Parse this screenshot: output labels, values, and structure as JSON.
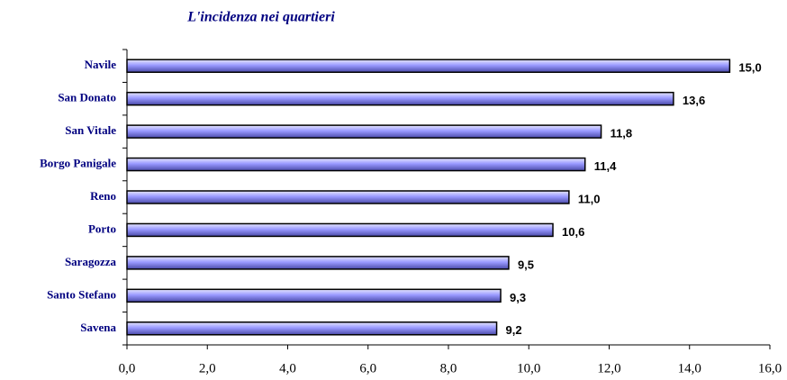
{
  "chart_data": {
    "type": "bar",
    "orientation": "horizontal",
    "title": "L'incidenza nei quartieri",
    "categories": [
      "Navile",
      "San Donato",
      "San Vitale",
      "Borgo Panigale",
      "Reno",
      "Porto",
      "Saragozza",
      "Santo Stefano",
      "Savena"
    ],
    "values": [
      15.0,
      13.6,
      11.8,
      11.4,
      11.0,
      10.6,
      9.5,
      9.3,
      9.2
    ],
    "value_labels": [
      "15,0",
      "13,6",
      "11,8",
      "11,4",
      "11,0",
      "10,6",
      "9,5",
      "9,3",
      "9,2"
    ],
    "color": "#9999ff",
    "xlim": [
      0,
      16
    ],
    "xticks": [
      {
        "value": 0,
        "label": "0,0"
      },
      {
        "value": 2,
        "label": "2,0"
      },
      {
        "value": 4,
        "label": "4,0"
      },
      {
        "value": 6,
        "label": "6,0"
      },
      {
        "value": 8,
        "label": "8,0"
      },
      {
        "value": 10,
        "label": "10,0"
      },
      {
        "value": 12,
        "label": "12,0"
      },
      {
        "value": 14,
        "label": "14,0"
      },
      {
        "value": 16,
        "label": "16,0"
      }
    ],
    "grid": false
  }
}
